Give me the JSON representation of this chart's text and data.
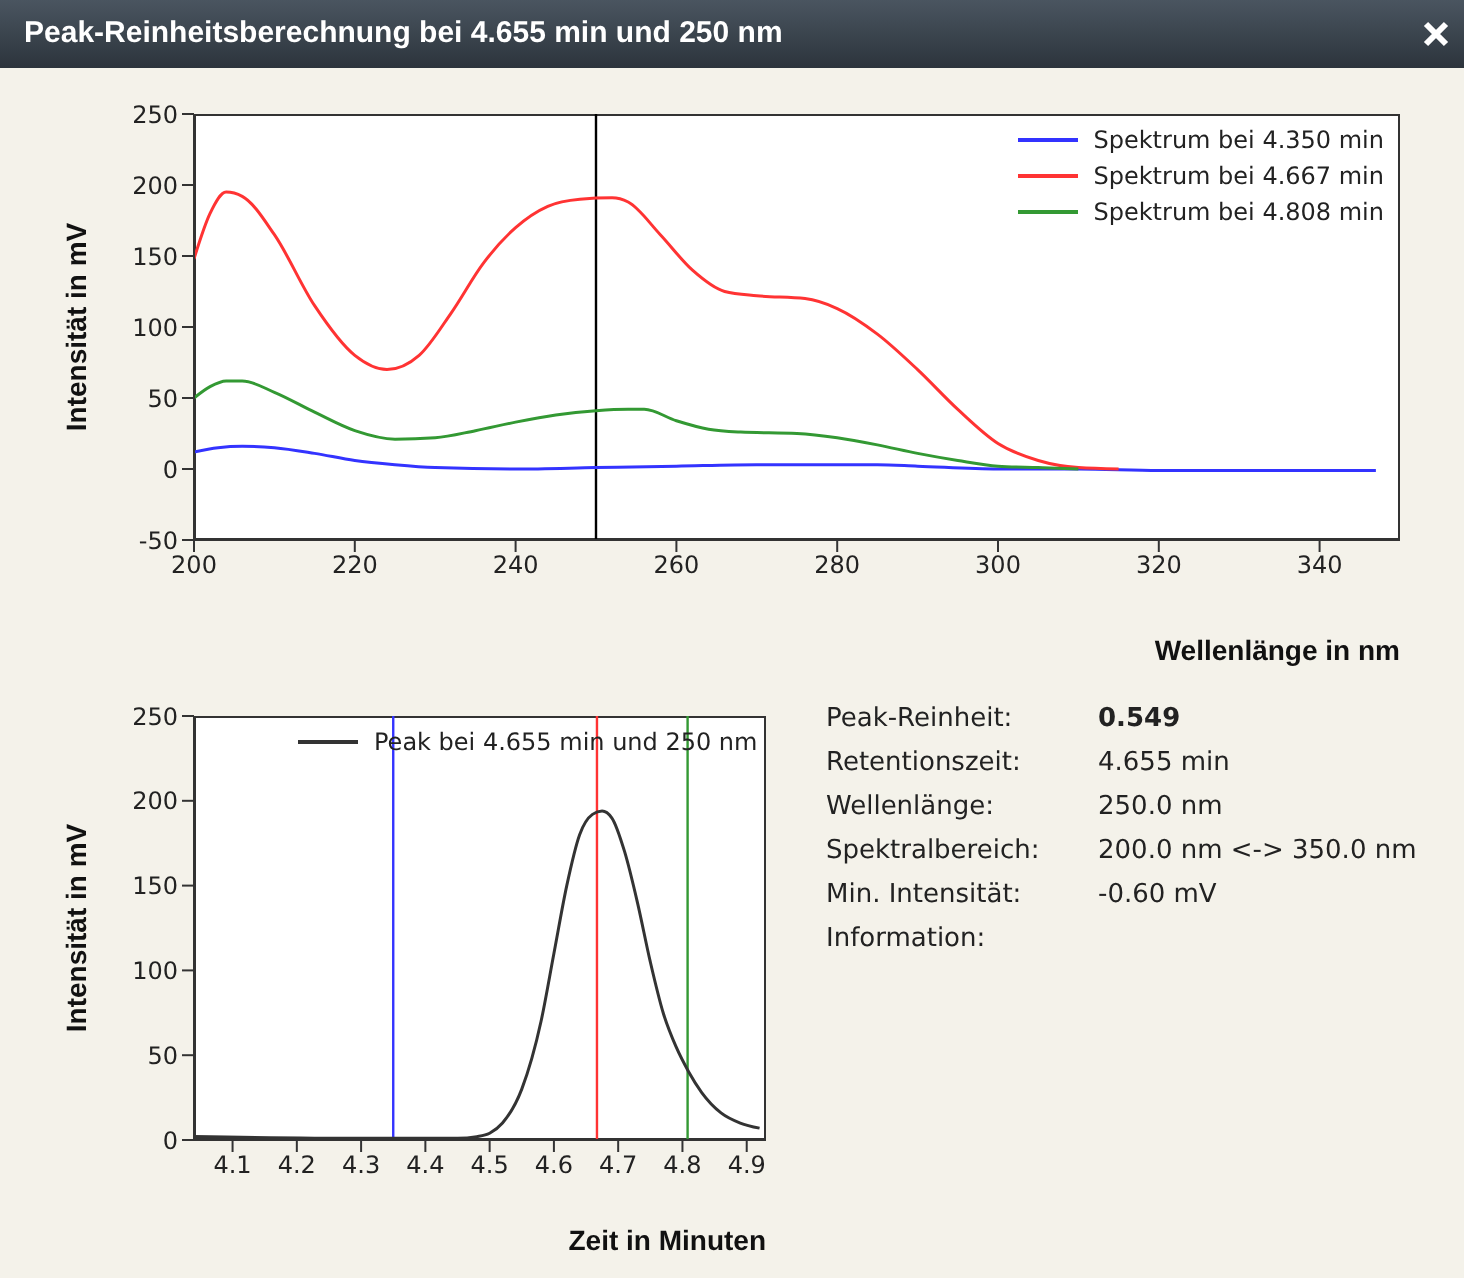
{
  "chart_data": [
    {
      "type": "line",
      "title": "Peak-Reinheitsberechnung bei 4.655 min und 250 nm",
      "xlabel": "Wellenlänge in nm",
      "ylabel": "Intensität in mV",
      "xlim": [
        200,
        350
      ],
      "xticks": [
        200,
        220,
        240,
        260,
        280,
        300,
        320,
        340
      ],
      "ylim": [
        -50,
        250
      ],
      "yticks": [
        -50,
        0,
        50,
        100,
        150,
        200,
        250
      ],
      "grid": false,
      "legend": "top right",
      "line_style": "solid",
      "ref_lines": [
        {
          "axis": "x",
          "value": 250,
          "color": "#000000"
        }
      ],
      "series": [
        {
          "name": "Spektrum bei 4.350 min",
          "color": "#3333ff",
          "x": [
            200,
            203,
            206,
            210,
            215,
            220,
            225,
            230,
            240,
            250,
            260,
            270,
            278,
            285,
            290,
            300,
            310,
            320,
            347
          ],
          "values": [
            12,
            15,
            16,
            15,
            11,
            6,
            3,
            1,
            0,
            1,
            2,
            3,
            3,
            3,
            2,
            0,
            0,
            -1,
            -1
          ]
        },
        {
          "name": "Spektrum bei 4.667 min",
          "color": "#ff3333",
          "x": [
            200,
            202,
            204,
            206,
            210,
            215,
            220,
            224,
            228,
            232,
            236,
            240,
            244,
            248,
            252,
            254,
            258,
            262,
            266,
            270,
            276,
            280,
            285,
            290,
            295,
            300,
            305,
            310,
            315
          ],
          "values": [
            148,
            180,
            195,
            192,
            165,
            115,
            80,
            70,
            80,
            110,
            145,
            170,
            185,
            190,
            191,
            188,
            165,
            140,
            125,
            122,
            120,
            113,
            95,
            70,
            42,
            18,
            6,
            1,
            0
          ]
        },
        {
          "name": "Spektrum bei 4.808 min",
          "color": "#339933",
          "x": [
            200,
            202,
            204,
            206,
            210,
            215,
            220,
            225,
            230,
            235,
            240,
            245,
            250,
            254,
            256,
            260,
            264,
            268,
            275,
            280,
            285,
            290,
            295,
            300,
            305,
            310
          ],
          "values": [
            50,
            58,
            62,
            62,
            54,
            40,
            27,
            21,
            22,
            27,
            33,
            38,
            41,
            42,
            42,
            34,
            28,
            26,
            25,
            22,
            17,
            11,
            6,
            2,
            1,
            0
          ]
        }
      ]
    },
    {
      "type": "line",
      "xlabel": "Zeit in Minuten",
      "ylabel": "Intensität in mV",
      "xlim": [
        4.04,
        4.93
      ],
      "xticks": [
        4.1,
        4.2,
        4.3,
        4.4,
        4.5,
        4.6,
        4.7,
        4.8,
        4.9
      ],
      "ylim": [
        0,
        250
      ],
      "yticks": [
        0,
        50,
        100,
        150,
        200,
        250
      ],
      "grid": false,
      "legend": "top",
      "line_style": "solid",
      "ref_lines": [
        {
          "axis": "x",
          "value": 4.35,
          "color": "#3333ff"
        },
        {
          "axis": "x",
          "value": 4.667,
          "color": "#ff3333"
        },
        {
          "axis": "x",
          "value": 4.808,
          "color": "#339933"
        }
      ],
      "series": [
        {
          "name": "Peak bei 4.655 min und 250 nm",
          "color": "#333333",
          "x": [
            4.04,
            4.3,
            4.45,
            4.48,
            4.5,
            4.52,
            4.55,
            4.58,
            4.6,
            4.62,
            4.64,
            4.66,
            4.675,
            4.69,
            4.71,
            4.73,
            4.75,
            4.77,
            4.79,
            4.81,
            4.83,
            4.86,
            4.89,
            4.92
          ],
          "values": [
            2,
            1,
            1,
            2,
            4,
            10,
            30,
            70,
            110,
            150,
            180,
            192,
            194,
            190,
            170,
            140,
            105,
            75,
            55,
            40,
            28,
            16,
            10,
            7
          ]
        }
      ]
    },
    {
      "type": "other",
      "annotations": [
        "Peak-Reinheit:",
        "0.549",
        "Retentionszeit:",
        "4.655 min",
        "Wellenlänge:",
        "250.0 nm",
        "Spektralbereich:",
        "200.0 nm <-> 350.0 nm",
        "Min. Intensität:",
        "-0.60 mV",
        "Information:"
      ]
    }
  ]
}
